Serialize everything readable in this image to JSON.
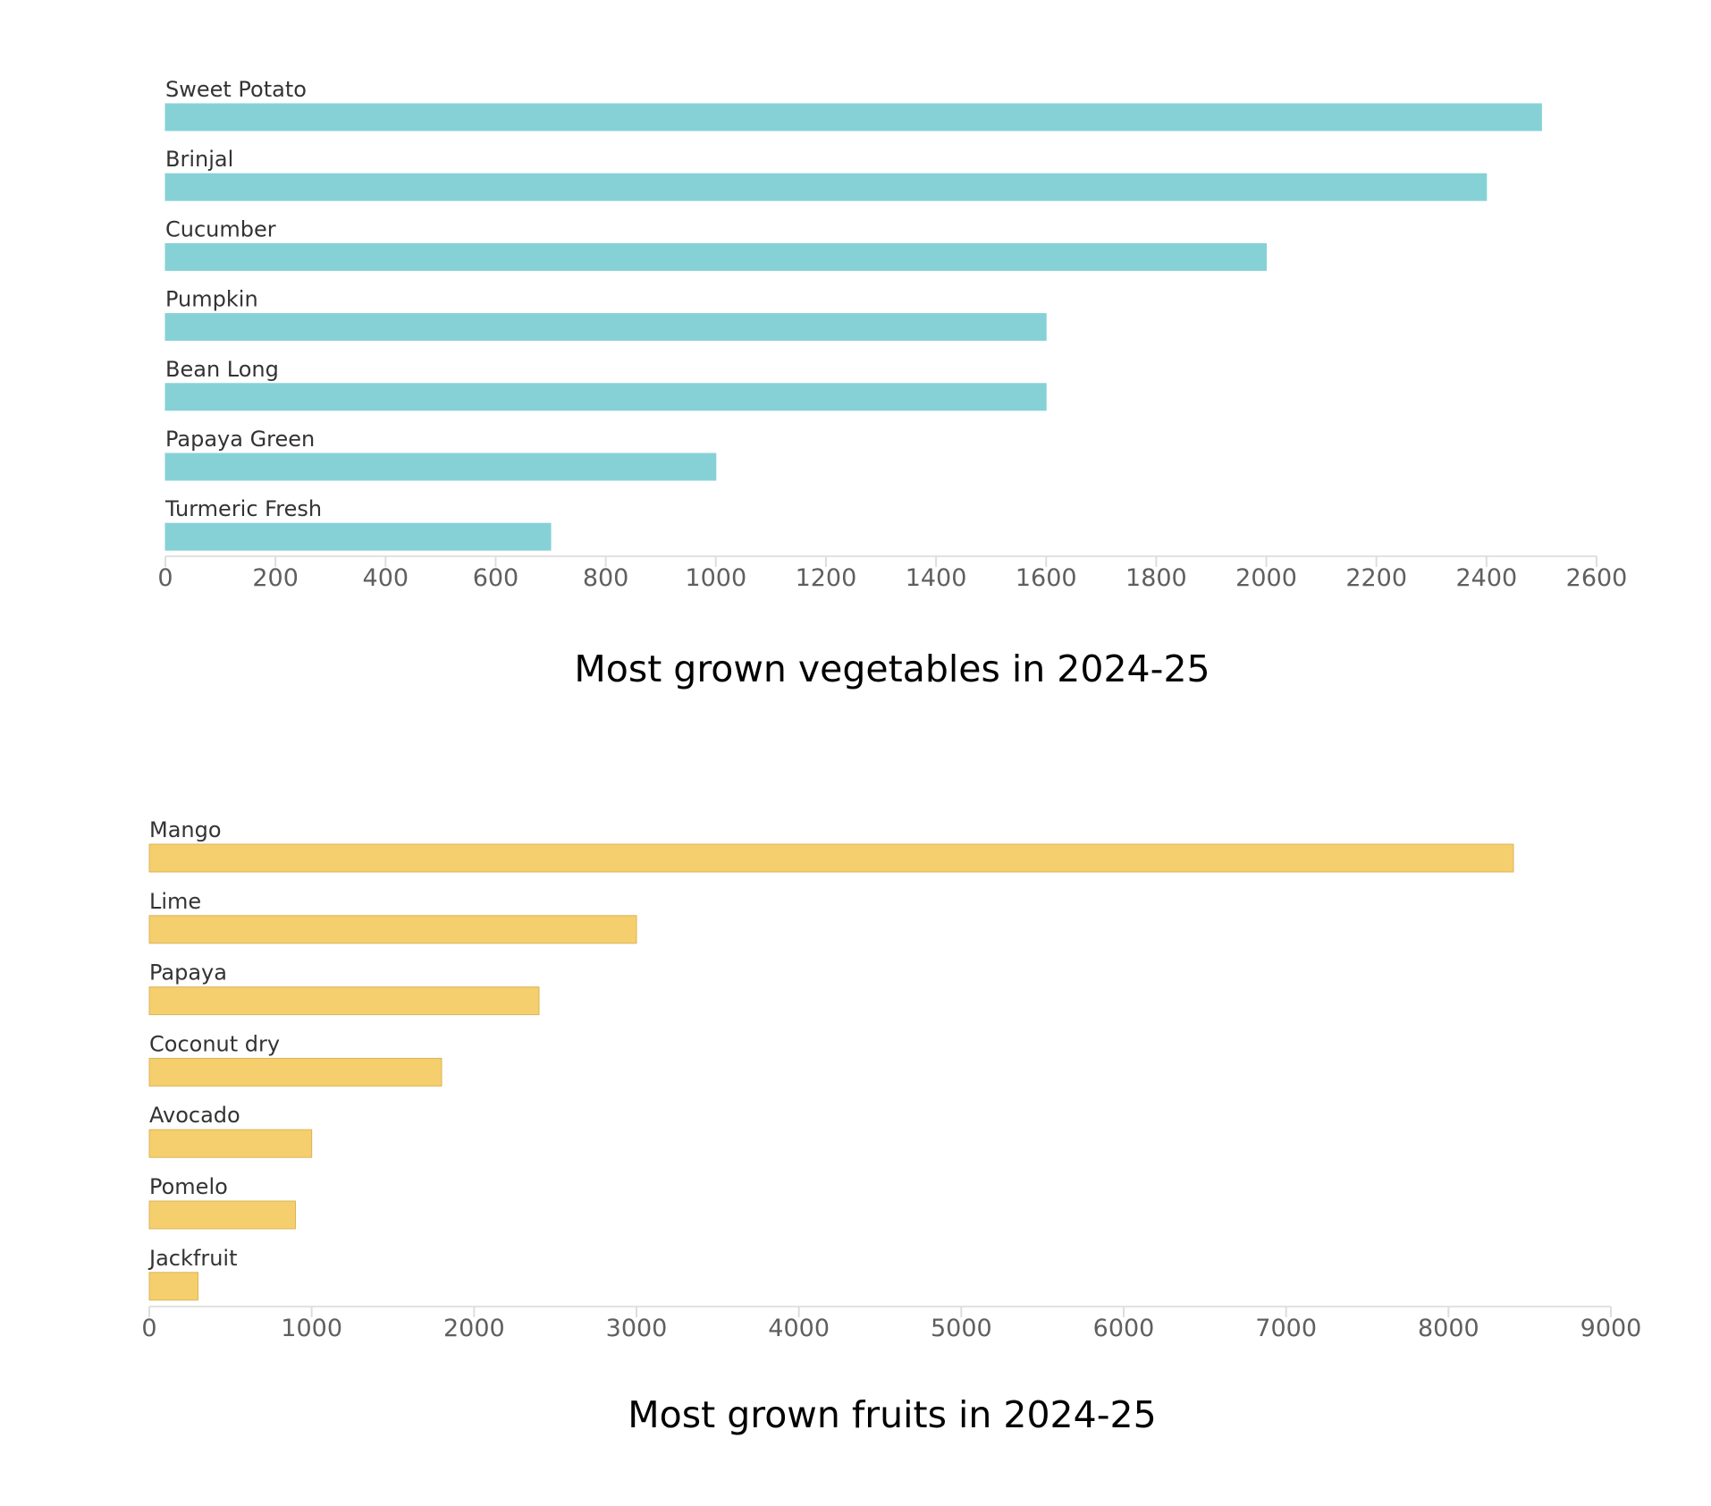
{
  "chart_data": [
    {
      "type": "bar",
      "orientation": "horizontal",
      "title": "Most grown vegetables in 2024-25",
      "categories": [
        "Sweet Potato",
        "Brinjal",
        "Cucumber",
        "Pumpkin",
        "Bean Long",
        "Papaya Green",
        "Turmeric Fresh"
      ],
      "values": [
        2500,
        2400,
        2000,
        1600,
        1600,
        1000,
        700
      ],
      "xlim": [
        0,
        2600
      ],
      "xticks": [
        0,
        200,
        400,
        600,
        800,
        1000,
        1200,
        1400,
        1600,
        1800,
        2000,
        2200,
        2400,
        2600
      ],
      "bar_color": "#86d1d6",
      "grid": false,
      "legend": "none"
    },
    {
      "type": "bar",
      "orientation": "horizontal",
      "title": "Most grown fruits in 2024-25",
      "categories": [
        "Mango",
        "Lime",
        "Papaya",
        "Coconut dry",
        "Avocado",
        "Pomelo",
        "Jackfruit"
      ],
      "values": [
        8400,
        3000,
        2400,
        1800,
        1000,
        900,
        300
      ],
      "xlim": [
        0,
        9000
      ],
      "xticks": [
        0,
        1000,
        2000,
        3000,
        4000,
        5000,
        6000,
        7000,
        8000,
        9000
      ],
      "bar_color": "#f5ce6e",
      "grid": false,
      "legend": "none"
    }
  ]
}
